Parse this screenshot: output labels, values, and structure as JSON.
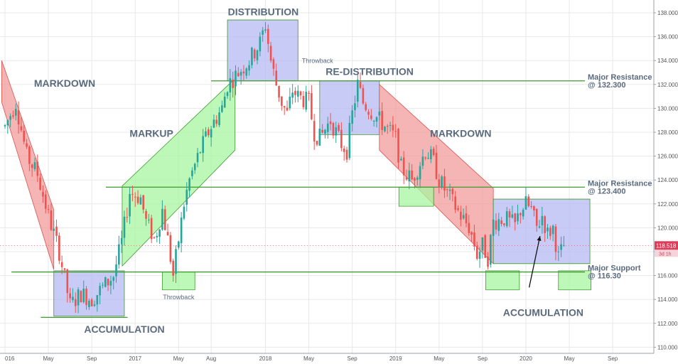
{
  "chart_data": {
    "type": "candlestick",
    "y_axis": {
      "ylim": [
        108.8,
        138.8
      ],
      "ticks": [
        "110.000",
        "112.000",
        "114.000",
        "116.000",
        "118.000",
        "120.000",
        "122.000",
        "124.000",
        "126.000",
        "128.000",
        "130.000",
        "132.000",
        "134.000",
        "136.000",
        "138.000"
      ],
      "position": "right"
    },
    "x_axis": {
      "ticks": [
        {
          "label": "016",
          "t": 0.0
        },
        {
          "label": "May",
          "t": 4.0
        },
        {
          "label": "Sep",
          "t": 8.0
        },
        {
          "label": "2017",
          "t": 12.0
        },
        {
          "label": "May",
          "t": 16.0
        },
        {
          "label": "Aug",
          "t": 19.0
        },
        {
          "label": "2018",
          "t": 24.0
        },
        {
          "label": "May",
          "t": 28.0
        },
        {
          "label": "Sep",
          "t": 32.0
        },
        {
          "label": "2019",
          "t": 36.0
        },
        {
          "label": "May",
          "t": 40.0
        },
        {
          "label": "Sep",
          "t": 44.0
        },
        {
          "label": "2020",
          "t": 48.0
        },
        {
          "label": "May",
          "t": 52.0
        },
        {
          "label": "Sep",
          "t": 56.0
        }
      ]
    },
    "price_path": [
      [
        0.0,
        128.5
      ],
      [
        1.0,
        130.5
      ],
      [
        2.0,
        126.0
      ],
      [
        3.0,
        124.5
      ],
      [
        4.0,
        121.0
      ],
      [
        5.0,
        118.0
      ],
      [
        6.0,
        113.5
      ],
      [
        7.0,
        114.5
      ],
      [
        8.0,
        114.0
      ],
      [
        9.0,
        115.0
      ],
      [
        10.0,
        116.0
      ],
      [
        10.8,
        119.0
      ],
      [
        11.5,
        123.0
      ],
      [
        12.5,
        122.5
      ],
      [
        13.0,
        120.5
      ],
      [
        13.8,
        119.0
      ],
      [
        14.5,
        121.5
      ],
      [
        15.0,
        119.0
      ],
      [
        15.5,
        116.0
      ],
      [
        16.0,
        119.0
      ],
      [
        16.5,
        122.0
      ],
      [
        17.0,
        124.0
      ],
      [
        18.0,
        126.5
      ],
      [
        19.0,
        128.5
      ],
      [
        20.0,
        130.0
      ],
      [
        20.5,
        132.0
      ],
      [
        21.5,
        133.0
      ],
      [
        22.5,
        134.0
      ],
      [
        23.5,
        135.5
      ],
      [
        24.0,
        137.0
      ],
      [
        24.5,
        134.0
      ],
      [
        25.0,
        132.0
      ],
      [
        25.5,
        130.5
      ],
      [
        26.0,
        129.5
      ],
      [
        26.5,
        131.5
      ],
      [
        27.0,
        131.0
      ],
      [
        28.0,
        130.5
      ],
      [
        28.5,
        128.0
      ],
      [
        29.0,
        127.5
      ],
      [
        30.0,
        129.0
      ],
      [
        31.0,
        127.0
      ],
      [
        31.5,
        126.5
      ],
      [
        32.0,
        129.5
      ],
      [
        32.5,
        132.0
      ],
      [
        33.0,
        130.5
      ],
      [
        34.0,
        129.5
      ],
      [
        35.0,
        128.5
      ],
      [
        36.0,
        127.5
      ],
      [
        36.5,
        125.0
      ],
      [
        37.0,
        124.5
      ],
      [
        37.5,
        124.0
      ],
      [
        38.0,
        125.0
      ],
      [
        38.8,
        126.5
      ],
      [
        39.5,
        125.5
      ],
      [
        40.0,
        124.0
      ],
      [
        41.0,
        122.5
      ],
      [
        42.0,
        121.0
      ],
      [
        42.8,
        120.0
      ],
      [
        43.5,
        117.8
      ],
      [
        44.0,
        118.5
      ],
      [
        44.5,
        117.5
      ],
      [
        45.0,
        120.5
      ],
      [
        46.0,
        120.8
      ],
      [
        47.0,
        120.2
      ],
      [
        47.5,
        121.5
      ],
      [
        48.0,
        122.0
      ],
      [
        48.5,
        121.5
      ],
      [
        49.0,
        120.0
      ],
      [
        49.5,
        121.0
      ],
      [
        50.0,
        119.5
      ],
      [
        50.5,
        120.0
      ],
      [
        51.0,
        117.5
      ],
      [
        51.5,
        118.5
      ]
    ],
    "series": [
      {
        "name": "",
        "current_price": "118.518"
      }
    ],
    "price_tag": {
      "value": "118.518",
      "timer": "3d 1h",
      "color": "#e03c5a"
    },
    "zones": [
      {
        "kind": "channel",
        "color": "#f29c9c",
        "label": "MARKDOWN",
        "poly": [
          [
            -0.3,
            134.0
          ],
          [
            4.5,
            121.5
          ],
          [
            4.5,
            116.5
          ],
          [
            -0.3,
            130.5
          ]
        ]
      },
      {
        "kind": "box",
        "color": "#b6b9f2",
        "label": "ACCUMULATION",
        "x": [
          4.5,
          11.0
        ],
        "y": [
          112.6,
          116.4
        ]
      },
      {
        "kind": "channel",
        "color": "#a8f5a0",
        "label": "MARKUP",
        "poly": [
          [
            10.8,
            116.8
          ],
          [
            10.8,
            123.5
          ],
          [
            21.2,
            132.5
          ],
          [
            21.2,
            126.5
          ]
        ]
      },
      {
        "kind": "box",
        "color": "#a8f5a0",
        "label": "Throwback",
        "x": [
          14.5,
          17.5
        ],
        "y": [
          114.8,
          116.3
        ]
      },
      {
        "kind": "box",
        "color": "#b6b9f2",
        "label": "DISTRIBUTION",
        "x": [
          20.5,
          27.0
        ],
        "y": [
          132.3,
          137.4
        ]
      },
      {
        "kind": "box",
        "color": "#b6b9f2",
        "label": "RE-DISTRIBUTION",
        "x": [
          29.0,
          34.5
        ],
        "y": [
          127.8,
          132.3
        ]
      },
      {
        "kind": "channel",
        "color": "#f29c9c",
        "label": "MARKDOWN",
        "poly": [
          [
            34.5,
            132.0
          ],
          [
            34.5,
            126.5
          ],
          [
            45.0,
            117.0
          ],
          [
            45.0,
            123.3
          ]
        ]
      },
      {
        "kind": "box",
        "color": "#a8f5a0",
        "label": "",
        "x": [
          36.3,
          39.5
        ],
        "y": [
          121.8,
          123.4
        ]
      },
      {
        "kind": "box",
        "color": "#b6b9f2",
        "label": "ACCUMULATION",
        "x": [
          45.0,
          53.9
        ],
        "y": [
          117.0,
          122.4
        ]
      },
      {
        "kind": "box",
        "color": "#a8f5a0",
        "label": "",
        "x": [
          44.3,
          47.4
        ],
        "y": [
          114.8,
          116.4
        ]
      },
      {
        "kind": "box",
        "color": "#a8f5a0",
        "label": "",
        "x": [
          51.0,
          54.0
        ],
        "y": [
          114.8,
          116.4
        ]
      }
    ],
    "levels": [
      {
        "label": "Major Resistance",
        "value_label": "@ 132.300",
        "value": 132.3,
        "x_start": 19.0
      },
      {
        "label": "Major Resistance",
        "value_label": "@ 123.400",
        "value": 123.4,
        "x_start": 9.3
      },
      {
        "label": "Major Support",
        "value_label": "@ 116.30",
        "value": 116.3,
        "x_start": 0.6
      }
    ],
    "short_lines": [
      {
        "value": 112.5,
        "x": [
          3.3,
          11.3
        ]
      }
    ],
    "annotations": [
      {
        "text": "MARKDOWN",
        "t": 5.5,
        "y": 131.8,
        "size": 14
      },
      {
        "text": "ACCUMULATION",
        "t": 11.0,
        "y": 111.2,
        "size": 14
      },
      {
        "text": "MARKUP",
        "t": 13.5,
        "y": 127.6,
        "size": 14
      },
      {
        "text": "Throwback",
        "t": 16.0,
        "y": 114.0,
        "size": 9,
        "small": true
      },
      {
        "text": "DISTRIBUTION",
        "t": 23.8,
        "y": 137.8,
        "size": 14
      },
      {
        "text": "Throwback",
        "t": 28.8,
        "y": 133.8,
        "size": 9,
        "small": true
      },
      {
        "text": "RE-DISTRIBUTION",
        "t": 33.6,
        "y": 132.8,
        "size": 14
      },
      {
        "text": "MARKDOWN",
        "t": 42.0,
        "y": 127.6,
        "size": 14
      },
      {
        "text": "ACCUMULATION",
        "t": 49.6,
        "y": 112.6,
        "size": 14
      }
    ],
    "arrow": {
      "from": [
        48.3,
        115.0
      ],
      "to": [
        49.3,
        119.3
      ]
    },
    "colors": {
      "up": "#26a69a",
      "down": "#ef5350",
      "level": "#3c9a2e",
      "grid": "#e8e8e8"
    }
  }
}
